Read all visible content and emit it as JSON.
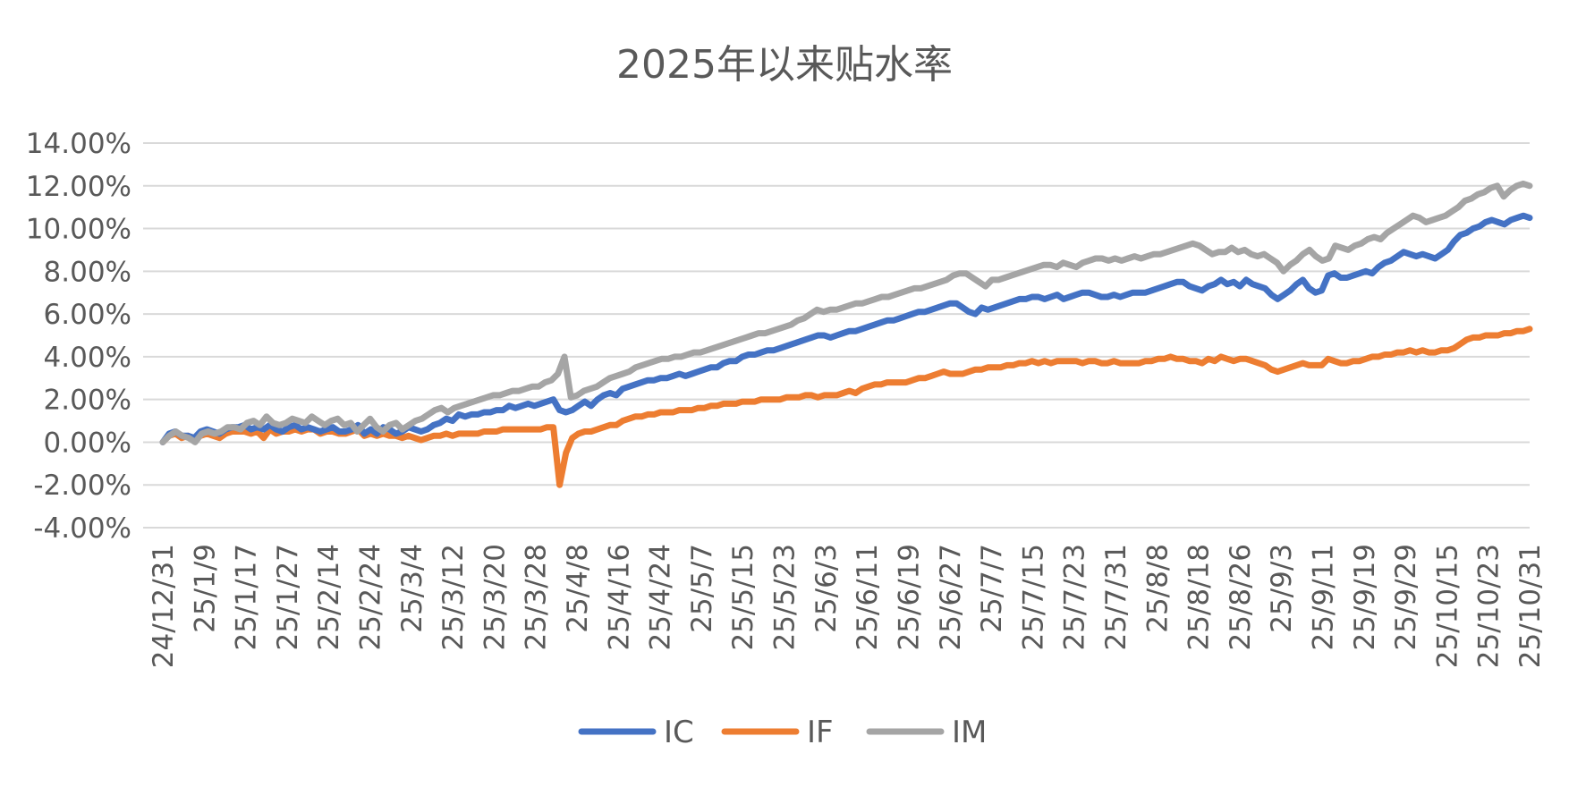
{
  "chart_data": {
    "type": "line",
    "title": "2025年以来贴水率",
    "xlabel": "",
    "ylabel": "",
    "y_ticks": [
      "14.00%",
      "12.00%",
      "10.00%",
      "8.00%",
      "6.00%",
      "4.00%",
      "2.00%",
      "0.00%",
      "-2.00%",
      "-4.00%"
    ],
    "ylim": [
      -4,
      14
    ],
    "grid": true,
    "legend_position": "bottom",
    "x_tick_labels": [
      "24/12/31",
      "25/1/9",
      "25/1/17",
      "25/1/27",
      "25/2/14",
      "25/2/24",
      "25/3/4",
      "25/3/12",
      "25/3/20",
      "25/3/28",
      "25/4/8",
      "25/4/16",
      "25/4/24",
      "25/5/7",
      "25/5/15",
      "25/5/23",
      "25/6/3",
      "25/6/11",
      "25/6/19",
      "25/6/27",
      "25/7/7",
      "25/7/15",
      "25/7/23",
      "25/7/31",
      "25/8/8",
      "25/8/18",
      "25/8/26",
      "25/9/3",
      "25/9/11",
      "25/9/19",
      "25/9/29",
      "25/10/15",
      "25/10/23",
      "25/10/31"
    ],
    "series": [
      {
        "name": "IC",
        "color": "#4472C4",
        "values": [
          0.0,
          0.4,
          0.5,
          0.3,
          0.3,
          0.2,
          0.5,
          0.6,
          0.5,
          0.4,
          0.6,
          0.7,
          0.7,
          0.8,
          0.6,
          0.7,
          0.6,
          0.8,
          0.6,
          0.5,
          0.7,
          0.8,
          0.6,
          0.7,
          0.6,
          0.5,
          0.6,
          0.7,
          0.5,
          0.5,
          0.6,
          0.8,
          0.4,
          0.6,
          0.4,
          0.7,
          0.6,
          0.4,
          0.5,
          0.7,
          0.6,
          0.5,
          0.6,
          0.8,
          0.9,
          1.1,
          1.0,
          1.3,
          1.2,
          1.3,
          1.3,
          1.4,
          1.4,
          1.5,
          1.5,
          1.7,
          1.6,
          1.7,
          1.8,
          1.7,
          1.8,
          1.9,
          2.0,
          1.5,
          1.4,
          1.5,
          1.7,
          1.9,
          1.7,
          2.0,
          2.2,
          2.3,
          2.2,
          2.5,
          2.6,
          2.7,
          2.8,
          2.9,
          2.9,
          3.0,
          3.0,
          3.1,
          3.2,
          3.1,
          3.2,
          3.3,
          3.4,
          3.5,
          3.5,
          3.7,
          3.8,
          3.8,
          4.0,
          4.1,
          4.1,
          4.2,
          4.3,
          4.3,
          4.4,
          4.5,
          4.6,
          4.7,
          4.8,
          4.9,
          5.0,
          5.0,
          4.9,
          5.0,
          5.1,
          5.2,
          5.2,
          5.3,
          5.4,
          5.5,
          5.6,
          5.7,
          5.7,
          5.8,
          5.9,
          6.0,
          6.1,
          6.1,
          6.2,
          6.3,
          6.4,
          6.5,
          6.5,
          6.3,
          6.1,
          6.0,
          6.3,
          6.2,
          6.3,
          6.4,
          6.5,
          6.6,
          6.7,
          6.7,
          6.8,
          6.8,
          6.7,
          6.8,
          6.9,
          6.7,
          6.8,
          6.9,
          7.0,
          7.0,
          6.9,
          6.8,
          6.8,
          6.9,
          6.8,
          6.9,
          7.0,
          7.0,
          7.0,
          7.1,
          7.2,
          7.3,
          7.4,
          7.5,
          7.5,
          7.3,
          7.2,
          7.1,
          7.3,
          7.4,
          7.6,
          7.4,
          7.5,
          7.3,
          7.6,
          7.4,
          7.3,
          7.2,
          6.9,
          6.7,
          6.9,
          7.1,
          7.4,
          7.6,
          7.2,
          7.0,
          7.1,
          7.8,
          7.9,
          7.7,
          7.7,
          7.8,
          7.9,
          8.0,
          7.9,
          8.2,
          8.4,
          8.5,
          8.7,
          8.9,
          8.8,
          8.7,
          8.8,
          8.7,
          8.6,
          8.8,
          9.0,
          9.4,
          9.7,
          9.8,
          10.0,
          10.1,
          10.3,
          10.4,
          10.3,
          10.2,
          10.4,
          10.5,
          10.6,
          10.5
        ]
      },
      {
        "name": "IF",
        "color": "#ED7D31",
        "values": [
          0.0,
          0.3,
          0.4,
          0.2,
          0.3,
          0.1,
          0.3,
          0.4,
          0.3,
          0.2,
          0.4,
          0.5,
          0.5,
          0.5,
          0.4,
          0.5,
          0.2,
          0.6,
          0.4,
          0.5,
          0.5,
          0.6,
          0.5,
          0.6,
          0.6,
          0.4,
          0.5,
          0.5,
          0.4,
          0.4,
          0.5,
          0.6,
          0.3,
          0.4,
          0.3,
          0.4,
          0.3,
          0.3,
          0.2,
          0.3,
          0.2,
          0.1,
          0.2,
          0.3,
          0.3,
          0.4,
          0.3,
          0.4,
          0.4,
          0.4,
          0.4,
          0.5,
          0.5,
          0.5,
          0.6,
          0.6,
          0.6,
          0.6,
          0.6,
          0.6,
          0.6,
          0.7,
          0.7,
          -2.0,
          -0.5,
          0.2,
          0.4,
          0.5,
          0.5,
          0.6,
          0.7,
          0.8,
          0.8,
          1.0,
          1.1,
          1.2,
          1.2,
          1.3,
          1.3,
          1.4,
          1.4,
          1.4,
          1.5,
          1.5,
          1.5,
          1.6,
          1.6,
          1.7,
          1.7,
          1.8,
          1.8,
          1.8,
          1.9,
          1.9,
          1.9,
          2.0,
          2.0,
          2.0,
          2.0,
          2.1,
          2.1,
          2.1,
          2.2,
          2.2,
          2.1,
          2.2,
          2.2,
          2.2,
          2.3,
          2.4,
          2.3,
          2.5,
          2.6,
          2.7,
          2.7,
          2.8,
          2.8,
          2.8,
          2.8,
          2.9,
          3.0,
          3.0,
          3.1,
          3.2,
          3.3,
          3.2,
          3.2,
          3.2,
          3.3,
          3.4,
          3.4,
          3.5,
          3.5,
          3.5,
          3.6,
          3.6,
          3.7,
          3.7,
          3.8,
          3.7,
          3.8,
          3.7,
          3.8,
          3.8,
          3.8,
          3.8,
          3.7,
          3.8,
          3.8,
          3.7,
          3.7,
          3.8,
          3.7,
          3.7,
          3.7,
          3.7,
          3.8,
          3.8,
          3.9,
          3.9,
          4.0,
          3.9,
          3.9,
          3.8,
          3.8,
          3.7,
          3.9,
          3.8,
          4.0,
          3.9,
          3.8,
          3.9,
          3.9,
          3.8,
          3.7,
          3.6,
          3.4,
          3.3,
          3.4,
          3.5,
          3.6,
          3.7,
          3.6,
          3.6,
          3.6,
          3.9,
          3.8,
          3.7,
          3.7,
          3.8,
          3.8,
          3.9,
          4.0,
          4.0,
          4.1,
          4.1,
          4.2,
          4.2,
          4.3,
          4.2,
          4.3,
          4.2,
          4.2,
          4.3,
          4.3,
          4.4,
          4.6,
          4.8,
          4.9,
          4.9,
          5.0,
          5.0,
          5.0,
          5.1,
          5.1,
          5.2,
          5.2,
          5.3
        ]
      },
      {
        "name": "IM",
        "color": "#A5A5A5",
        "values": [
          0.0,
          0.3,
          0.5,
          0.3,
          0.2,
          0.0,
          0.4,
          0.5,
          0.4,
          0.5,
          0.7,
          0.7,
          0.6,
          0.9,
          1.0,
          0.8,
          1.2,
          0.9,
          0.8,
          0.9,
          1.1,
          1.0,
          0.9,
          1.2,
          1.0,
          0.8,
          1.0,
          1.1,
          0.8,
          0.9,
          0.5,
          0.8,
          1.1,
          0.7,
          0.5,
          0.8,
          0.9,
          0.6,
          0.8,
          1.0,
          1.1,
          1.3,
          1.5,
          1.6,
          1.4,
          1.6,
          1.7,
          1.8,
          1.9,
          2.0,
          2.1,
          2.2,
          2.2,
          2.3,
          2.4,
          2.4,
          2.5,
          2.6,
          2.6,
          2.8,
          2.9,
          3.2,
          4.0,
          2.1,
          2.2,
          2.4,
          2.5,
          2.6,
          2.8,
          3.0,
          3.1,
          3.2,
          3.3,
          3.5,
          3.6,
          3.7,
          3.8,
          3.9,
          3.9,
          4.0,
          4.0,
          4.1,
          4.2,
          4.2,
          4.3,
          4.4,
          4.5,
          4.6,
          4.7,
          4.8,
          4.9,
          5.0,
          5.1,
          5.1,
          5.2,
          5.3,
          5.4,
          5.5,
          5.7,
          5.8,
          6.0,
          6.2,
          6.1,
          6.2,
          6.2,
          6.3,
          6.4,
          6.5,
          6.5,
          6.6,
          6.7,
          6.8,
          6.8,
          6.9,
          7.0,
          7.1,
          7.2,
          7.2,
          7.3,
          7.4,
          7.5,
          7.6,
          7.8,
          7.9,
          7.9,
          7.7,
          7.5,
          7.3,
          7.6,
          7.6,
          7.7,
          7.8,
          7.9,
          8.0,
          8.1,
          8.2,
          8.3,
          8.3,
          8.2,
          8.4,
          8.3,
          8.2,
          8.4,
          8.5,
          8.6,
          8.6,
          8.5,
          8.6,
          8.5,
          8.6,
          8.7,
          8.6,
          8.7,
          8.8,
          8.8,
          8.9,
          9.0,
          9.1,
          9.2,
          9.3,
          9.2,
          9.0,
          8.8,
          8.9,
          8.9,
          9.1,
          8.9,
          9.0,
          8.8,
          8.7,
          8.8,
          8.6,
          8.4,
          8.0,
          8.3,
          8.5,
          8.8,
          9.0,
          8.7,
          8.5,
          8.6,
          9.2,
          9.1,
          9.0,
          9.2,
          9.3,
          9.5,
          9.6,
          9.5,
          9.8,
          10.0,
          10.2,
          10.4,
          10.6,
          10.5,
          10.3,
          10.4,
          10.5,
          10.6,
          10.8,
          11.0,
          11.3,
          11.4,
          11.6,
          11.7,
          11.9,
          12.0,
          11.5,
          11.8,
          12.0,
          12.1,
          12.0
        ]
      }
    ]
  }
}
